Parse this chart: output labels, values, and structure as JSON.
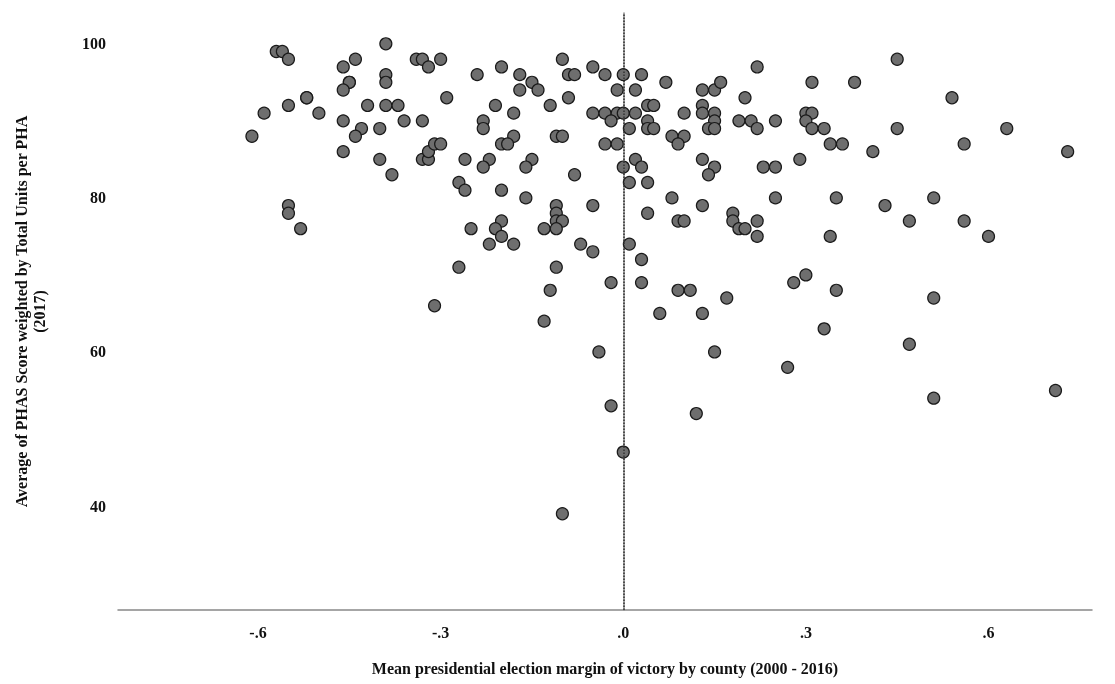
{
  "chart_data": {
    "type": "scatter",
    "xlabel": "Mean presidential election margin of victory by county (2000 - 2016)",
    "ylabel": "Average of PHAS Score weighted by Total Units per PHA\n(2017)",
    "series": [
      {
        "color": "#6e6e6e",
        "x": [
          -0.57,
          -0.56,
          -0.55,
          -0.39,
          -0.46,
          -0.44,
          -0.34,
          -0.33,
          -0.3,
          -0.32,
          -0.45,
          -0.45,
          -0.46,
          -0.39,
          -0.39,
          -0.52,
          -0.52,
          -0.55,
          -0.59,
          -0.5,
          -0.42,
          -0.39,
          -0.37,
          -0.29,
          -0.46,
          -0.43,
          -0.44,
          -0.4,
          -0.36,
          -0.33,
          -0.61,
          -0.46,
          -0.4,
          -0.38,
          -0.33,
          -0.32,
          -0.32,
          -0.31,
          -0.3,
          -0.55,
          -0.55,
          -0.53,
          -0.31,
          -0.2,
          -0.24,
          -0.1,
          -0.17,
          -0.15,
          -0.14,
          -0.17,
          -0.09,
          -0.08,
          -0.05,
          -0.03,
          0.0,
          0.03,
          -0.01,
          0.02,
          0.07,
          -0.21,
          -0.18,
          -0.12,
          -0.09,
          -0.05,
          -0.03,
          -0.01,
          0.0,
          0.02,
          0.04,
          0.05,
          -0.02,
          0.04,
          0.01,
          0.04,
          0.05,
          -0.23,
          -0.23,
          -0.18,
          -0.2,
          -0.19,
          -0.11,
          -0.1,
          -0.03,
          -0.01,
          0.1,
          0.13,
          0.13,
          0.15,
          0.15,
          0.14,
          0.15,
          0.13,
          0.15,
          0.16,
          0.22,
          0.2,
          0.19,
          0.21,
          0.22,
          0.25,
          0.08,
          0.1,
          0.09,
          -0.26,
          -0.22,
          -0.23,
          -0.15,
          -0.16,
          -0.08,
          0.0,
          0.02,
          0.03,
          0.01,
          0.04,
          0.13,
          0.15,
          0.14,
          0.23,
          0.25,
          -0.27,
          -0.26,
          -0.2,
          -0.16,
          -0.05,
          -0.11,
          -0.11,
          -0.11,
          -0.1,
          -0.13,
          -0.11,
          -0.2,
          -0.21,
          -0.2,
          -0.25,
          -0.22,
          -0.18,
          -0.07,
          -0.05,
          0.01,
          0.03,
          0.08,
          0.04,
          0.13,
          0.25,
          0.09,
          0.1,
          0.18,
          0.18,
          0.19,
          0.2,
          0.22,
          0.22,
          -0.27,
          -0.11,
          -0.02,
          0.03,
          -0.12,
          0.09,
          0.11,
          0.17,
          0.06,
          0.13,
          -0.13,
          -0.04,
          0.15,
          -0.02,
          0.12,
          0.0,
          -0.1,
          0.45,
          0.31,
          0.38,
          0.54,
          0.3,
          0.31,
          0.3,
          0.31,
          0.33,
          0.45,
          0.63,
          0.34,
          0.36,
          0.56,
          0.41,
          0.73,
          0.29,
          0.35,
          0.51,
          0.43,
          0.47,
          0.56,
          0.34,
          0.6,
          0.3,
          0.28,
          0.35,
          0.51,
          0.33,
          0.47,
          0.27,
          0.51,
          0.71
        ],
        "values": [
          99,
          99,
          98,
          100,
          97,
          98,
          98,
          98,
          98,
          97,
          95,
          95,
          94,
          96,
          95,
          93,
          93,
          92,
          91,
          91,
          92,
          92,
          92,
          93,
          90,
          89,
          88,
          89,
          90,
          90,
          88,
          86,
          85,
          83,
          85,
          85,
          86,
          87,
          87,
          79,
          78,
          76,
          66,
          97,
          96,
          98,
          96,
          95,
          94,
          94,
          96,
          96,
          97,
          96,
          96,
          96,
          94,
          94,
          95,
          92,
          91,
          92,
          93,
          91,
          91,
          91,
          91,
          91,
          92,
          92,
          90,
          90,
          89,
          89,
          89,
          90,
          89,
          88,
          87,
          87,
          88,
          88,
          87,
          87,
          91,
          92,
          91,
          91,
          90,
          89,
          89,
          94,
          94,
          95,
          97,
          93,
          90,
          90,
          89,
          90,
          88,
          88,
          87,
          85,
          85,
          84,
          85,
          84,
          83,
          84,
          85,
          84,
          82,
          82,
          85,
          84,
          83,
          84,
          84,
          82,
          81,
          81,
          80,
          79,
          79,
          78,
          77,
          77,
          76,
          76,
          77,
          76,
          75,
          76,
          74,
          74,
          74,
          73,
          74,
          72,
          80,
          78,
          79,
          80,
          77,
          77,
          78,
          77,
          76,
          76,
          77,
          75,
          71,
          71,
          69,
          69,
          68,
          68,
          68,
          67,
          65,
          65,
          64,
          60,
          60,
          53,
          52,
          47,
          39,
          98,
          95,
          95,
          93,
          91,
          91,
          90,
          89,
          89,
          89,
          89,
          87,
          87,
          87,
          86,
          86,
          85,
          80,
          80,
          79,
          77,
          77,
          75,
          75,
          70,
          69,
          68,
          67,
          63,
          61,
          58,
          54,
          55
        ]
      }
    ],
    "marker": "circle",
    "xlim": [
      -0.83,
      0.77
    ],
    "xticks": [
      {
        "value": -0.6,
        "label": "-.6"
      },
      {
        "value": -0.3,
        "label": "-.3"
      },
      {
        "value": 0,
        "label": ".0"
      },
      {
        "value": 0.3,
        "label": ".3"
      },
      {
        "value": 0.6,
        "label": ".6"
      }
    ],
    "ylim": [
      26.5,
      104
    ],
    "yticks": [
      40,
      60,
      80,
      100
    ],
    "grid": false,
    "ref_lines": [
      {
        "axis": "x",
        "value": 0,
        "line_style": "dotted",
        "color": "#333333"
      }
    ]
  }
}
